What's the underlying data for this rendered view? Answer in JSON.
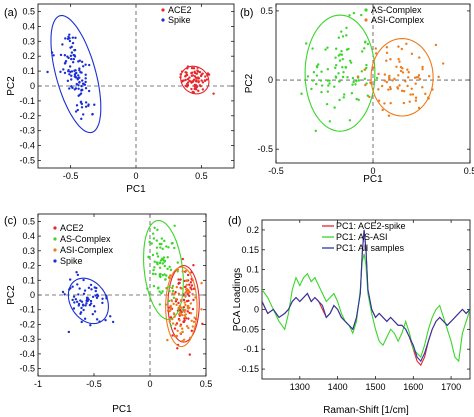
{
  "chart_data": [
    {
      "panel_label": "(a)",
      "type": "scatter",
      "xlabel": "PC1",
      "ylabel": "PC2",
      "xlim": [
        -0.75,
        0.75
      ],
      "ylim": [
        -0.55,
        0.55
      ],
      "xticks": [
        -0.5,
        0,
        0.5
      ],
      "yticks": [
        -0.5,
        -0.4,
        -0.3,
        -0.2,
        -0.1,
        0,
        0.1,
        0.2,
        0.3,
        0.4,
        0.5
      ],
      "xtick_labels": [
        "-0.5",
        "0",
        "0.5"
      ],
      "ytick_labels": [
        "-0.5",
        "-0.4",
        "-0.3",
        "-0.2",
        "-0.1",
        "0",
        "0.1",
        "0.2",
        "0.3",
        "0.4",
        "0.5"
      ],
      "legend_position": "top-right",
      "series": [
        {
          "name": "ACE2",
          "color": "#e8262b",
          "center": [
            0.47,
            0.05
          ],
          "spread": [
            0.06,
            0.05
          ],
          "count": 80,
          "ellipse": {
            "cx": 0.45,
            "cy": 0.04,
            "rx": 0.11,
            "ry": 0.09,
            "angle": -20
          }
        },
        {
          "name": "Spike",
          "color": "#1a2fd6",
          "center": [
            -0.45,
            0.07
          ],
          "spread": [
            0.05,
            0.17
          ],
          "count": 110,
          "ellipse": {
            "cx": -0.46,
            "cy": 0.08,
            "rx": 0.15,
            "ry": 0.41,
            "angle": 18
          }
        }
      ]
    },
    {
      "panel_label": "(b)",
      "type": "scatter",
      "xlabel": "PC1",
      "ylabel": "PC2",
      "xlim": [
        -0.5,
        0.5
      ],
      "ylim": [
        -0.6,
        0.55
      ],
      "xticks": [
        -0.5,
        0,
        0.5
      ],
      "yticks": [
        -0.5,
        0,
        0.5
      ],
      "xtick_labels": [
        "-0.5",
        "0",
        "0.5"
      ],
      "ytick_labels": [
        "-0.5",
        "0",
        "0.5"
      ],
      "legend_position": "top-right",
      "series": [
        {
          "name": "AS-Complex",
          "color": "#3ad62a",
          "center": [
            -0.2,
            0.08
          ],
          "spread": [
            0.08,
            0.18
          ],
          "count": 90,
          "ellipse": {
            "cx": -0.17,
            "cy": 0.05,
            "rx": 0.18,
            "ry": 0.42,
            "angle": 0
          }
        },
        {
          "name": "ASI-Complex",
          "color": "#ef7a1a",
          "center": [
            0.12,
            0.02
          ],
          "spread": [
            0.09,
            0.12
          ],
          "count": 80,
          "ellipse": {
            "cx": 0.15,
            "cy": 0.02,
            "rx": 0.16,
            "ry": 0.28,
            "angle": 0
          }
        }
      ]
    },
    {
      "panel_label": "(c)",
      "type": "scatter",
      "xlabel": "PC1",
      "ylabel": "PC2",
      "xlim": [
        -1.0,
        0.5
      ],
      "ylim": [
        -0.55,
        0.55
      ],
      "xticks": [
        -1,
        -0.5,
        0,
        0.5
      ],
      "yticks": [
        -0.5,
        -0.4,
        -0.3,
        -0.2,
        -0.1,
        0,
        0.1,
        0.2,
        0.3,
        0.4,
        0.5
      ],
      "xtick_labels": [
        "-1",
        "-0.5",
        "0",
        "0.5"
      ],
      "ytick_labels": [
        "-0.5",
        "-0.4",
        "-0.3",
        "-0.2",
        "-0.1",
        "0",
        "0.1",
        "0.2",
        "0.3",
        "0.4",
        "0.5"
      ],
      "legend_position": "top-left",
      "series": [
        {
          "name": "ACE2",
          "color": "#e8262b",
          "center": [
            0.32,
            -0.02
          ],
          "spread": [
            0.06,
            0.12
          ],
          "count": 80,
          "ellipse": {
            "cx": 0.3,
            "cy": -0.06,
            "rx": 0.14,
            "ry": 0.26,
            "angle": 0
          }
        },
        {
          "name": "AS-Complex",
          "color": "#3ad62a",
          "center": [
            0.12,
            0.18
          ],
          "spread": [
            0.07,
            0.14
          ],
          "count": 80,
          "ellipse": {
            "cx": 0.12,
            "cy": 0.17,
            "rx": 0.17,
            "ry": 0.34,
            "angle": 10
          }
        },
        {
          "name": "ASI-Complex",
          "color": "#ef7a1a",
          "center": [
            0.3,
            -0.06
          ],
          "spread": [
            0.06,
            0.12
          ],
          "count": 80,
          "ellipse": {
            "cx": 0.28,
            "cy": -0.08,
            "rx": 0.14,
            "ry": 0.27,
            "angle": 0
          }
        },
        {
          "name": "Spike",
          "color": "#1a2fd6",
          "center": [
            -0.55,
            -0.03
          ],
          "spread": [
            0.09,
            0.07
          ],
          "count": 70,
          "ellipse": {
            "cx": -0.55,
            "cy": -0.04,
            "rx": 0.19,
            "ry": 0.14,
            "angle": -30
          }
        }
      ]
    },
    {
      "panel_label": "(d)",
      "type": "line",
      "xlabel": "Raman-Shift [1/cm]",
      "ylabel": "PCA Loadings",
      "xlim": [
        1200,
        1750
      ],
      "ylim": [
        -0.175,
        0.225
      ],
      "xticks": [
        1300,
        1400,
        1500,
        1600,
        1700
      ],
      "yticks": [
        -0.15,
        -0.1,
        -0.05,
        0,
        0.05,
        0.1,
        0.15,
        0.2
      ],
      "xtick_labels": [
        "1300",
        "1400",
        "1500",
        "1600",
        "1700"
      ],
      "ytick_labels": [
        "-0.15",
        "-0.1",
        "-0.05",
        "0",
        "0.05",
        "0.1",
        "0.15",
        "0.2"
      ],
      "legend_position": "top-right",
      "x": [
        1200,
        1215,
        1230,
        1245,
        1260,
        1270,
        1280,
        1290,
        1300,
        1310,
        1320,
        1330,
        1340,
        1350,
        1360,
        1370,
        1380,
        1390,
        1400,
        1410,
        1420,
        1430,
        1440,
        1450,
        1460,
        1465,
        1470,
        1475,
        1480,
        1490,
        1500,
        1510,
        1520,
        1530,
        1540,
        1550,
        1560,
        1570,
        1580,
        1590,
        1600,
        1610,
        1620,
        1630,
        1640,
        1650,
        1660,
        1670,
        1680,
        1690,
        1700,
        1710,
        1720,
        1730,
        1740,
        1750
      ],
      "series": [
        {
          "name": "PC1: ACE2-spike",
          "color": "#e8262b",
          "values": [
            0.02,
            -0.01,
            0.0,
            -0.02,
            -0.01,
            0.0,
            0.02,
            0.03,
            0.02,
            0.03,
            0.04,
            0.02,
            0.03,
            0.02,
            0.0,
            -0.02,
            -0.01,
            0.01,
            0.0,
            -0.02,
            -0.03,
            -0.04,
            -0.05,
            -0.02,
            0.04,
            0.14,
            0.2,
            0.15,
            0.05,
            0.0,
            -0.02,
            -0.01,
            -0.02,
            -0.03,
            -0.02,
            -0.03,
            -0.04,
            -0.04,
            -0.05,
            -0.07,
            -0.1,
            -0.13,
            -0.14,
            -0.12,
            -0.08,
            -0.05,
            -0.03,
            -0.02,
            -0.03,
            -0.04,
            -0.03,
            -0.02,
            -0.01,
            0.0,
            -0.01,
            0.0
          ]
        },
        {
          "name": "PC1: AS-ASI",
          "color": "#3ad62a",
          "values": [
            0.05,
            0.03,
            0.0,
            -0.03,
            -0.05,
            -0.01,
            0.05,
            0.08,
            0.06,
            0.08,
            0.09,
            0.07,
            0.08,
            0.06,
            0.04,
            0.02,
            0.03,
            0.04,
            0.02,
            -0.01,
            -0.03,
            -0.04,
            -0.06,
            -0.03,
            0.05,
            0.12,
            0.14,
            0.11,
            0.04,
            -0.01,
            -0.05,
            -0.08,
            -0.09,
            -0.07,
            -0.05,
            -0.06,
            -0.08,
            -0.06,
            -0.03,
            -0.06,
            -0.1,
            -0.11,
            -0.12,
            -0.09,
            -0.05,
            -0.02,
            0.0,
            0.01,
            -0.02,
            -0.05,
            -0.08,
            -0.12,
            -0.13,
            -0.06,
            -0.03,
            0.0
          ]
        },
        {
          "name": "PC1: All samples",
          "color": "#2a37a8",
          "values": [
            0.02,
            -0.01,
            0.0,
            -0.02,
            -0.01,
            0.0,
            0.02,
            0.03,
            0.02,
            0.03,
            0.04,
            0.02,
            0.03,
            0.02,
            0.01,
            -0.02,
            -0.01,
            0.01,
            0.0,
            -0.02,
            -0.03,
            -0.04,
            -0.05,
            -0.02,
            0.04,
            0.14,
            0.2,
            0.15,
            0.05,
            0.0,
            -0.02,
            -0.01,
            -0.02,
            -0.03,
            -0.02,
            -0.03,
            -0.04,
            -0.04,
            -0.05,
            -0.07,
            -0.09,
            -0.12,
            -0.13,
            -0.11,
            -0.08,
            -0.05,
            -0.03,
            -0.02,
            -0.03,
            -0.04,
            -0.03,
            -0.02,
            -0.01,
            0.0,
            -0.01,
            0.0
          ]
        }
      ]
    }
  ]
}
